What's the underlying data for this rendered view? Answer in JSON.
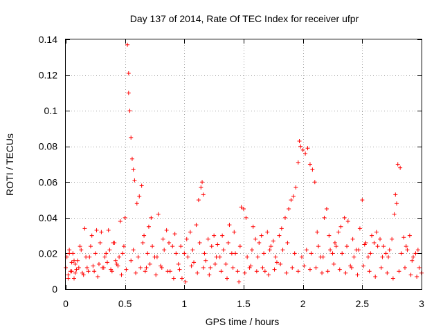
{
  "chart_data": {
    "type": "scatter",
    "title": "Day 137 of 2014, Rate Of TEC Index for receiver ufpr",
    "xlabel": "GPS time / hours",
    "ylabel": "ROTI / TECUs",
    "xlim": [
      0,
      3
    ],
    "ylim": [
      0,
      0.14
    ],
    "x_ticks": [
      0,
      0.5,
      1,
      1.5,
      2,
      2.5,
      3
    ],
    "x_tick_labels": [
      "0",
      "0.5",
      "1",
      "1.5",
      "2",
      "2.5",
      "3"
    ],
    "y_ticks": [
      0,
      0.02,
      0.04,
      0.06,
      0.08,
      0.1,
      0.12,
      0.14
    ],
    "y_tick_labels": [
      "0",
      "0.02",
      "0.04",
      "0.06",
      "0.08",
      "0.1",
      "0.12",
      "0.14"
    ],
    "grid": true,
    "marker": "+",
    "marker_color": "#ff0000",
    "series": [
      {
        "name": "ROTI",
        "x": [
          0.0,
          0.01,
          0.02,
          0.03,
          0.04,
          0.05,
          0.06,
          0.07,
          0.08,
          0.09,
          0.1,
          0.12,
          0.14,
          0.16,
          0.18,
          0.2,
          0.22,
          0.24,
          0.26,
          0.28,
          0.3,
          0.32,
          0.34,
          0.36,
          0.38,
          0.4,
          0.42,
          0.44,
          0.46,
          0.48,
          0.5,
          0.52,
          0.53,
          0.53,
          0.54,
          0.55,
          0.56,
          0.57,
          0.58,
          0.6,
          0.62,
          0.64,
          0.66,
          0.68,
          0.7,
          0.72,
          0.75,
          0.78,
          0.8,
          0.82,
          0.85,
          0.88,
          0.9,
          0.92,
          0.95,
          0.98,
          1.0,
          1.02,
          1.05,
          1.08,
          1.1,
          1.12,
          1.14,
          1.15,
          1.16,
          1.18,
          1.2,
          1.22,
          1.25,
          1.28,
          1.3,
          1.32,
          1.35,
          1.38,
          1.4,
          1.42,
          1.45,
          1.48,
          1.5,
          1.52,
          1.55,
          1.58,
          1.6,
          1.62,
          1.65,
          1.68,
          1.7,
          1.72,
          1.75,
          1.78,
          1.8,
          1.82,
          1.85,
          1.88,
          1.9,
          1.92,
          1.94,
          1.96,
          1.97,
          1.98,
          2.0,
          2.02,
          2.04,
          2.06,
          2.08,
          2.1,
          2.12,
          2.15,
          2.18,
          2.2,
          2.22,
          2.25,
          2.28,
          2.3,
          2.32,
          2.35,
          2.38,
          2.4,
          2.42,
          2.45,
          2.48,
          2.5,
          2.52,
          2.55,
          2.58,
          2.6,
          2.62,
          2.65,
          2.68,
          2.7,
          2.72,
          2.75,
          2.77,
          2.78,
          2.79,
          2.8,
          2.82,
          2.85,
          2.88,
          2.9,
          2.92,
          2.95,
          2.98,
          3.0,
          0.02,
          0.05,
          0.08,
          0.11,
          0.15,
          0.19,
          0.23,
          0.27,
          0.31,
          0.35,
          0.39,
          0.43,
          0.47,
          0.51,
          0.55,
          0.59,
          0.63,
          0.67,
          0.71,
          0.76,
          0.81,
          0.86,
          0.91,
          0.96,
          1.01,
          1.06,
          1.11,
          1.16,
          1.21,
          1.26,
          1.31,
          1.36,
          1.41,
          1.46,
          1.51,
          1.56,
          1.61,
          1.66,
          1.71,
          1.76,
          1.81,
          1.86,
          1.91,
          1.96,
          2.01,
          2.06,
          2.11,
          2.16,
          2.21,
          2.26,
          2.31,
          2.36,
          2.41,
          2.46,
          2.51,
          2.56,
          2.61,
          2.66,
          2.71,
          2.76,
          2.81,
          2.86,
          2.91,
          2.96,
          0.03,
          0.07,
          0.13,
          0.17,
          0.21,
          0.25,
          0.29,
          0.33,
          0.37,
          0.41,
          0.45,
          0.49,
          0.57,
          0.61,
          0.65,
          0.69,
          0.73,
          0.77,
          0.83,
          0.87,
          0.93,
          0.97,
          1.03,
          1.07,
          1.13,
          1.17,
          1.23,
          1.27,
          1.33,
          1.37,
          1.43,
          1.47,
          1.53,
          1.57,
          1.63,
          1.67,
          1.73,
          1.77,
          1.83,
          1.87,
          1.93,
          1.99,
          2.03,
          2.07,
          2.13,
          2.17,
          2.23,
          2.27,
          2.33,
          2.37,
          2.43,
          2.47,
          2.53,
          2.57,
          2.63,
          2.67,
          2.73,
          2.83,
          2.87,
          2.93,
          2.97
        ],
        "y": [
          0.012,
          0.018,
          0.008,
          0.022,
          0.01,
          0.015,
          0.02,
          0.006,
          0.014,
          0.011,
          0.016,
          0.024,
          0.009,
          0.034,
          0.012,
          0.018,
          0.03,
          0.01,
          0.033,
          0.014,
          0.032,
          0.012,
          0.02,
          0.033,
          0.011,
          0.026,
          0.016,
          0.013,
          0.038,
          0.02,
          0.04,
          0.137,
          0.121,
          0.11,
          0.1,
          0.085,
          0.073,
          0.067,
          0.061,
          0.048,
          0.052,
          0.058,
          0.03,
          0.012,
          0.035,
          0.04,
          0.018,
          0.042,
          0.013,
          0.028,
          0.033,
          0.01,
          0.024,
          0.031,
          0.014,
          0.006,
          0.02,
          0.028,
          0.032,
          0.015,
          0.036,
          0.05,
          0.057,
          0.06,
          0.053,
          0.016,
          0.028,
          0.012,
          0.03,
          0.025,
          0.018,
          0.03,
          0.014,
          0.036,
          0.02,
          0.032,
          0.01,
          0.046,
          0.045,
          0.04,
          0.012,
          0.035,
          0.028,
          0.018,
          0.03,
          0.01,
          0.032,
          0.022,
          0.027,
          0.015,
          0.03,
          0.034,
          0.04,
          0.045,
          0.05,
          0.052,
          0.057,
          0.071,
          0.083,
          0.08,
          0.078,
          0.076,
          0.079,
          0.07,
          0.067,
          0.06,
          0.032,
          0.018,
          0.04,
          0.045,
          0.03,
          0.02,
          0.024,
          0.032,
          0.035,
          0.04,
          0.038,
          0.013,
          0.028,
          0.022,
          0.034,
          0.05,
          0.025,
          0.018,
          0.03,
          0.026,
          0.032,
          0.028,
          0.024,
          0.02,
          0.018,
          0.028,
          0.042,
          0.053,
          0.048,
          0.07,
          0.068,
          0.029,
          0.022,
          0.03,
          0.016,
          0.02,
          0.012,
          0.009,
          0.006,
          0.01,
          0.009,
          0.012,
          0.008,
          0.01,
          0.013,
          0.007,
          0.012,
          0.015,
          0.01,
          0.014,
          0.008,
          0.011,
          0.016,
          0.009,
          0.012,
          0.01,
          0.014,
          0.008,
          0.012,
          0.01,
          0.006,
          0.011,
          0.004,
          0.013,
          0.009,
          0.012,
          0.008,
          0.014,
          0.01,
          0.006,
          0.012,
          0.004,
          0.009,
          0.013,
          0.01,
          0.012,
          0.008,
          0.011,
          0.014,
          0.009,
          0.012,
          0.01,
          0.013,
          0.011,
          0.012,
          0.009,
          0.01,
          0.014,
          0.011,
          0.009,
          0.012,
          0.008,
          0.013,
          0.01,
          0.007,
          0.012,
          0.009,
          0.006,
          0.01,
          0.012,
          0.008,
          0.007,
          0.02,
          0.016,
          0.022,
          0.018,
          0.024,
          0.02,
          0.026,
          0.018,
          0.022,
          0.026,
          0.018,
          0.024,
          0.022,
          0.018,
          0.026,
          0.02,
          0.024,
          0.018,
          0.022,
          0.026,
          0.02,
          0.024,
          0.018,
          0.022,
          0.026,
          0.02,
          0.024,
          0.018,
          0.022,
          0.026,
          0.02,
          0.024,
          0.018,
          0.022,
          0.026,
          0.02,
          0.024,
          0.018,
          0.022,
          0.026,
          0.02,
          0.018,
          0.022,
          0.02,
          0.024,
          0.018,
          0.022,
          0.026,
          0.02,
          0.024,
          0.018,
          0.022,
          0.026,
          0.02,
          0.024,
          0.018,
          0.022,
          0.02,
          0.024,
          0.018,
          0.022
        ]
      }
    ]
  }
}
